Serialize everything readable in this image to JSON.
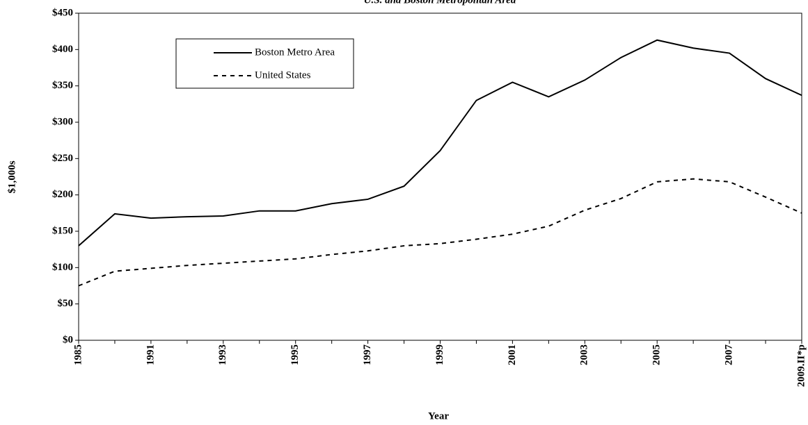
{
  "chart_data": {
    "type": "line",
    "title": "U.S. and Boston Metropolitan Area",
    "x_label": "Year",
    "y_label": "$1,000s",
    "categories": [
      "1985",
      null,
      "1991",
      null,
      "1993",
      null,
      "1995",
      null,
      "1997",
      null,
      "1999",
      null,
      "2001",
      null,
      "2003",
      null,
      "2005",
      null,
      "2007",
      null,
      "2009.II*p"
    ],
    "series": [
      {
        "name": "Boston Metro Area",
        "color": "#000000",
        "dash": "solid",
        "values": [
          130,
          174,
          168,
          170,
          171,
          178,
          178,
          188,
          194,
          212,
          261,
          330,
          355,
          335,
          358,
          389,
          413,
          402,
          395,
          360,
          337
        ]
      },
      {
        "name": "United States",
        "color": "#000000",
        "dash": "dashed",
        "values": [
          75,
          95,
          99,
          103,
          106,
          109,
          112,
          118,
          123,
          130,
          133,
          139,
          146,
          157,
          179,
          195,
          218,
          222,
          218,
          197,
          175
        ]
      }
    ],
    "ylim": [
      0,
      450
    ],
    "yticks": [
      {
        "value": 0,
        "label": "$0"
      },
      {
        "value": 50,
        "label": "$50"
      },
      {
        "value": 100,
        "label": "$100"
      },
      {
        "value": 150,
        "label": "$150"
      },
      {
        "value": 200,
        "label": "$200"
      },
      {
        "value": 250,
        "label": "$250"
      },
      {
        "value": 300,
        "label": "$300"
      },
      {
        "value": 350,
        "label": "$350"
      },
      {
        "value": 400,
        "label": "$400"
      },
      {
        "value": 450,
        "label": "$450"
      }
    ],
    "legend": "upper left"
  }
}
